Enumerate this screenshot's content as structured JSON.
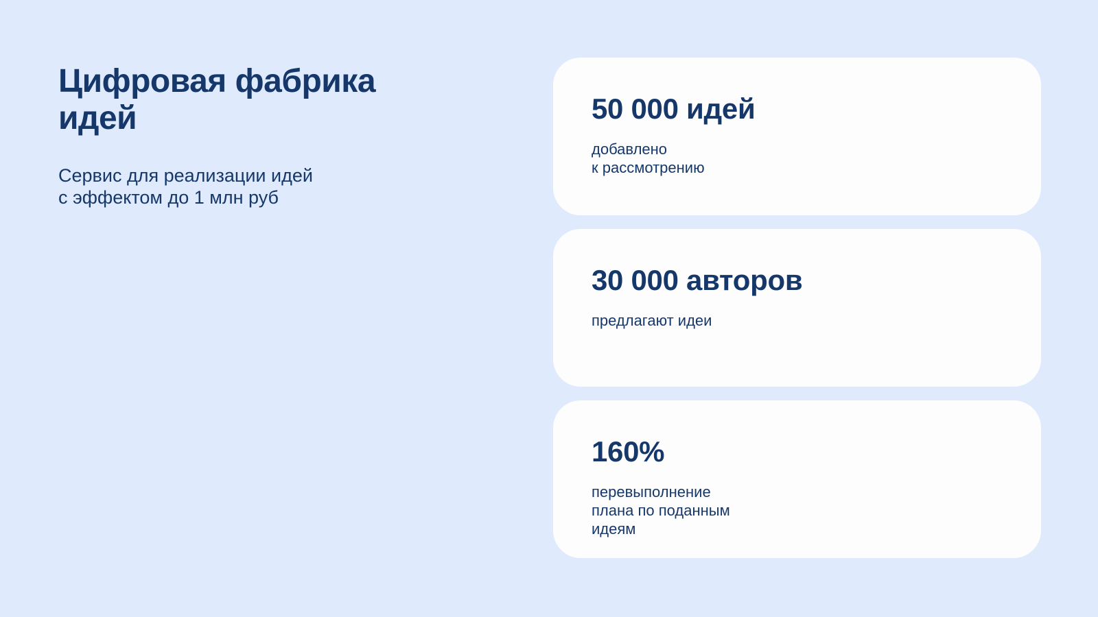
{
  "intro": {
    "title": "Цифровая фабрика\nидей",
    "subtitle": "Сервис для реализации идей\nс эффектом до 1 млн руб"
  },
  "cards": [
    {
      "value": "50 000 идей",
      "label": "добавлено\nк рассмотрению"
    },
    {
      "value": "30 000 авторов",
      "label": "предлагают идеи"
    },
    {
      "value": "160%",
      "label": "перевыполнение\nплана по поданным\nидеям"
    }
  ],
  "colors": {
    "background": "#dfebfc",
    "card": "#fdfdfe",
    "text": "#16376a"
  }
}
